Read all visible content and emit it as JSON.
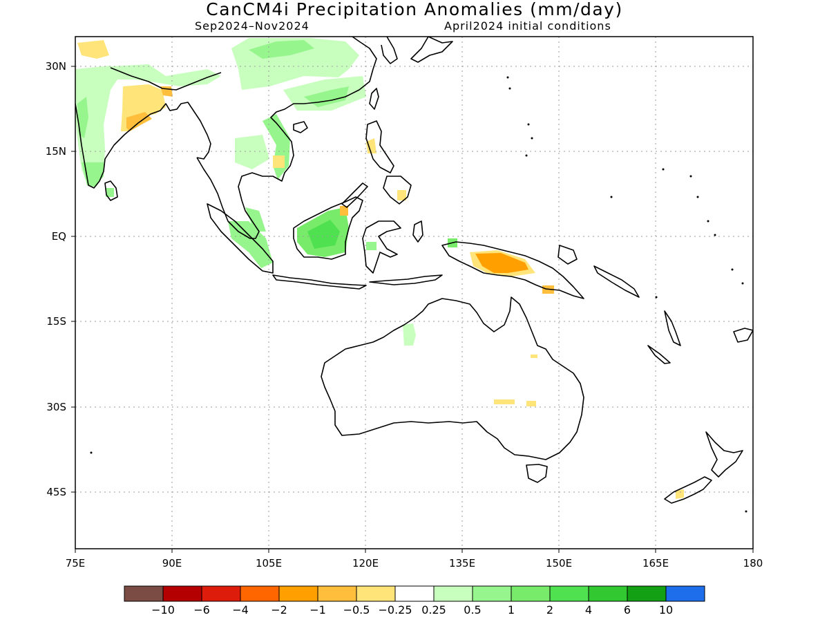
{
  "title": "CanCM4i Precipitation Anomalies (mm/day)",
  "subtitle_left": "Sep2024–Nov2024",
  "subtitle_right": "April2024 initial conditions",
  "map": {
    "lon_range": [
      75,
      180
    ],
    "lat_range": [
      -55,
      36
    ],
    "x_ticks": [
      "75E",
      "90E",
      "105E",
      "120E",
      "135E",
      "150E",
      "165E",
      "180"
    ],
    "y_ticks": [
      "30N",
      "15N",
      "EQ",
      "15S",
      "30S",
      "45S"
    ],
    "grid": "dotted"
  },
  "colorbar": {
    "colors": [
      "#7a4c44",
      "#b40000",
      "#de1c0c",
      "#ff6600",
      "#ffa000",
      "#ffbe3c",
      "#ffe47a",
      "#ffffff",
      "#c8ffbe",
      "#96f58c",
      "#78ec6a",
      "#50e150",
      "#32c832",
      "#14a014",
      "#1e6eeb"
    ],
    "labels": [
      "−10",
      "−6",
      "−4",
      "−2",
      "−1",
      "−0.5",
      "−0.25",
      "0.25",
      "0.5",
      "1",
      "2",
      "4",
      "6",
      "10"
    ]
  },
  "anomaly_regions": [
    {
      "region": "Northwest India",
      "anomaly": "-0.5 to -0.25"
    },
    {
      "region": "Western India",
      "anomaly": "0.25 to 1"
    },
    {
      "region": "Southern China",
      "anomaly": "0.25 to 1"
    },
    {
      "region": "Sumatra",
      "anomaly": "0.5 to 1"
    },
    {
      "region": "Borneo",
      "anomaly": "1 to 4"
    },
    {
      "region": "New Guinea",
      "anomaly": "-2 to -0.25"
    },
    {
      "region": "Northern Australia",
      "anomaly": "0.25 to 0.5"
    },
    {
      "region": "Eastern Australia",
      "anomaly": "-0.5 to -0.25"
    }
  ]
}
